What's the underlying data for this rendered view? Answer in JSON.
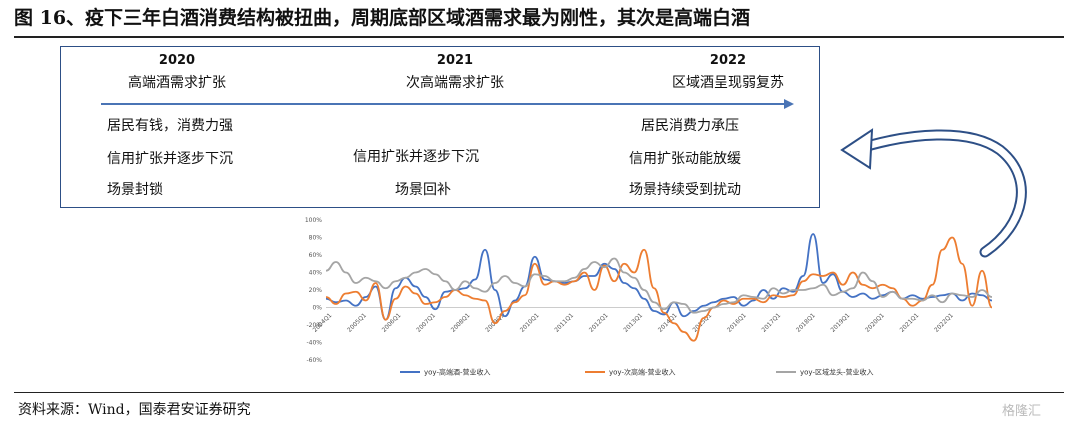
{
  "title": "图 16、疫下三年白酒消费结构被扭曲，周期底部区域酒需求最为刚性，其次是高端白酒",
  "timeline": {
    "years": [
      "2020",
      "2021",
      "2022"
    ],
    "phases": [
      "高端酒需求扩张",
      "次高端需求扩张",
      "区域酒呈现弱复苏"
    ],
    "rows": [
      [
        "居民有钱，消费力强",
        "",
        "居民消费力承压"
      ],
      [
        "信用扩张并逐步下沉",
        "信用扩张并逐步下沉",
        "信用扩张动能放缓"
      ],
      [
        "场景封锁",
        "场景回补",
        "场景持续受到扰动"
      ]
    ]
  },
  "source": "资料来源：Wind，国泰君安证券研究",
  "watermark": "格隆汇",
  "colors": {
    "high_end": "#4472c4",
    "sub_high_end": "#ed7d31",
    "regional": "#a5a5a5",
    "box": "#2d4f86",
    "arrow": "#4a74b5"
  },
  "chart_data": {
    "type": "line",
    "ylim": [
      -60,
      100
    ],
    "yticks": [
      "100%",
      "80%",
      "60%",
      "40%",
      "20%",
      "0%",
      "-20%",
      "-40%",
      "-60%"
    ],
    "x_labels": [
      "2004Q1",
      "2005Q1",
      "2006Q1",
      "2007Q1",
      "2008Q1",
      "2009Q1",
      "2010Q1",
      "2011Q1",
      "2012Q1",
      "2013Q1",
      "2014Q1",
      "2015Q1",
      "2016Q1",
      "2017Q1",
      "2018Q1",
      "2019Q1",
      "2020Q1",
      "2021Q1",
      "2022Q1"
    ],
    "series": [
      {
        "name": "yoy-高端酒-营业收入",
        "values": [
          10,
          6,
          8,
          2,
          12,
          24,
          -14,
          22,
          34,
          24,
          12,
          -2,
          18,
          20,
          22,
          32,
          66,
          20,
          -10,
          8,
          24,
          58,
          32,
          30,
          28,
          30,
          36,
          36,
          50,
          44,
          28,
          22,
          10,
          -4,
          -8,
          6,
          -10,
          -4,
          2,
          6,
          10,
          12,
          2,
          8,
          20,
          10,
          22,
          18,
          36,
          84,
          28,
          38,
          18,
          12,
          16,
          10,
          14,
          18,
          10,
          14,
          10,
          12,
          14,
          16,
          8,
          16,
          14,
          8
        ]
      },
      {
        "name": "yoy-次高端-营业收入",
        "values": [
          12,
          4,
          16,
          18,
          8,
          28,
          -14,
          10,
          24,
          16,
          4,
          6,
          12,
          20,
          14,
          10,
          8,
          -18,
          -4,
          6,
          14,
          50,
          26,
          30,
          26,
          30,
          40,
          20,
          48,
          30,
          50,
          40,
          66,
          22,
          -6,
          -18,
          -28,
          -38,
          -12,
          0,
          8,
          4,
          10,
          10,
          6,
          14,
          12,
          14,
          30,
          38,
          36,
          40,
          26,
          40,
          26,
          22,
          26,
          22,
          10,
          2,
          8,
          26,
          66,
          80,
          50,
          2,
          42,
          0
        ]
      },
      {
        "name": "yoy-区域龙头-营业收入",
        "values": [
          42,
          52,
          40,
          28,
          34,
          30,
          22,
          30,
          34,
          40,
          44,
          38,
          30,
          20,
          30,
          22,
          18,
          28,
          36,
          28,
          24,
          38,
          36,
          30,
          30,
          34,
          44,
          52,
          46,
          56,
          40,
          34,
          20,
          6,
          -2,
          6,
          4,
          -6,
          -4,
          0,
          4,
          6,
          14,
          12,
          10,
          22,
          16,
          20,
          20,
          22,
          26,
          14,
          18,
          22,
          40,
          30,
          12,
          18,
          10,
          10,
          8,
          14,
          6,
          16,
          14,
          12,
          20,
          12
        ]
      }
    ]
  }
}
